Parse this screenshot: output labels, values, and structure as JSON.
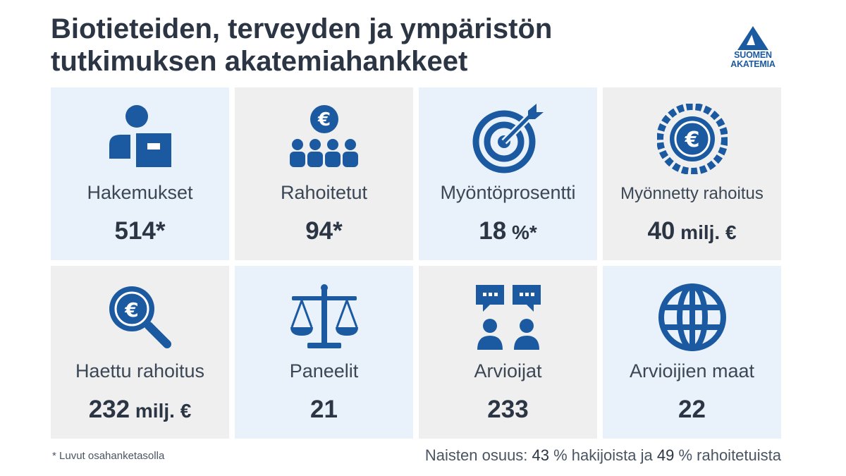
{
  "title": {
    "line1": "Biotieteiden, terveyden ja ympäristön",
    "line2": "tutkimuksen akatemiahankkeet"
  },
  "logo": {
    "icon": "suomen-akatemia-triangle-logo",
    "line1": "SUOMEN",
    "line2": "AKATEMIA"
  },
  "colors": {
    "icon_blue": "#1b5aa0",
    "tile_blue": "#e9f1fb",
    "tile_grey": "#efefef",
    "title": "#2b3544"
  },
  "stats": [
    {
      "icon": "applicant-with-document-icon",
      "label": "Hakemukset",
      "value": "514",
      "suffix": "*"
    },
    {
      "icon": "funded-group-euro-icon",
      "label": "Rahoitetut",
      "value": "94",
      "suffix": "*"
    },
    {
      "icon": "target-arrow-icon",
      "label": "Myöntöprosentti",
      "value": "18",
      "suffix": " %*"
    },
    {
      "icon": "euro-coin-icon",
      "label": "Myönnetty rahoitus",
      "value": "40",
      "suffix": " milj. €"
    },
    {
      "icon": "euro-magnifier-icon",
      "label": "Haettu rahoitus",
      "value": "232",
      "suffix": " milj. €"
    },
    {
      "icon": "scales-icon",
      "label": "Paneelit",
      "value": "21",
      "suffix": ""
    },
    {
      "icon": "reviewers-speech-icon",
      "label": "Arvioijat",
      "value": "233",
      "suffix": ""
    },
    {
      "icon": "globe-icon",
      "label": "Arvioijien maat",
      "value": "22",
      "suffix": ""
    }
  ],
  "footnote": "* Luvut osahanketasolla",
  "women_share": {
    "prefix": "Naisten osuus: ",
    "applicants_value": "43",
    "applicants_text": " % hakijoista ja ",
    "funded_value": "49",
    "funded_text": " % rahoitetuista"
  }
}
